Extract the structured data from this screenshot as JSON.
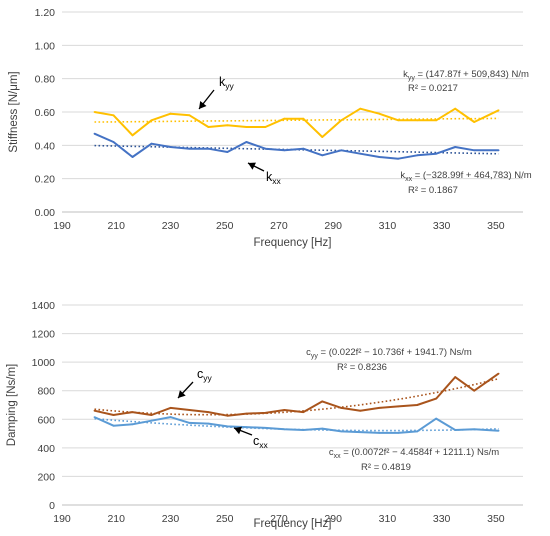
{
  "chart_data": [
    {
      "type": "line",
      "xlabel": "Frequency [Hz]",
      "ylabel": "Stiffness [N/μm]",
      "xlim": [
        190,
        360
      ],
      "ylim": [
        0.0,
        1.2
      ],
      "x_ticks": [
        "190",
        "210",
        "230",
        "250",
        "270",
        "290",
        "310",
        "330",
        "350"
      ],
      "y_ticks": [
        "0.00",
        "0.20",
        "0.40",
        "0.60",
        "0.80",
        "1.00",
        "1.20"
      ],
      "grid": "horizontal",
      "x": [
        202,
        209,
        216,
        223,
        230,
        237,
        244,
        251,
        258,
        265,
        272,
        279,
        286,
        293,
        300,
        307,
        314,
        321,
        328,
        335,
        342,
        351
      ],
      "series": [
        {
          "id": "kyy",
          "color": "#FFC000",
          "values": [
            0.6,
            0.58,
            0.46,
            0.55,
            0.59,
            0.58,
            0.51,
            0.52,
            0.51,
            0.51,
            0.56,
            0.56,
            0.45,
            0.55,
            0.62,
            0.59,
            0.55,
            0.55,
            0.55,
            0.62,
            0.54,
            0.61
          ],
          "trend": {
            "slope": 0.00014787,
            "intercept": 0.509843,
            "color": "#FFC000"
          },
          "label_main": "k",
          "label_sub": "yy",
          "equation_main": "k",
          "equation_sub": "yy",
          "equation_rest": " = (147.87f + 509,843) N/m",
          "r2": "R² = 0.0217"
        },
        {
          "id": "kxx",
          "color": "#4472C4",
          "values": [
            0.47,
            0.42,
            0.33,
            0.41,
            0.39,
            0.38,
            0.38,
            0.36,
            0.42,
            0.38,
            0.37,
            0.38,
            0.34,
            0.37,
            0.35,
            0.33,
            0.32,
            0.34,
            0.35,
            0.39,
            0.37,
            0.37
          ],
          "trend": {
            "slope": -0.00032899,
            "intercept": 0.464783,
            "color": "#2F5597"
          },
          "label_main": "k",
          "label_sub": "xx",
          "equation_main": "k",
          "equation_sub": "xx",
          "equation_rest": " = (−328.99f + 464,783) N/m",
          "r2": "R² = 0.1867"
        }
      ]
    },
    {
      "type": "line",
      "xlabel": "Frequency [Hz]",
      "ylabel": "Damping [Ns/m]",
      "xlim": [
        190,
        360
      ],
      "ylim": [
        0,
        1400
      ],
      "x_ticks": [
        "190",
        "210",
        "230",
        "250",
        "270",
        "290",
        "310",
        "330",
        "350"
      ],
      "y_ticks": [
        "0",
        "200",
        "400",
        "600",
        "800",
        "1000",
        "1200",
        "1400"
      ],
      "grid": "horizontal",
      "x": [
        202,
        209,
        216,
        223,
        230,
        237,
        244,
        251,
        258,
        265,
        272,
        279,
        286,
        293,
        300,
        307,
        314,
        321,
        328,
        335,
        342,
        351
      ],
      "series": [
        {
          "id": "cyy",
          "color": "#A9541C",
          "values": [
            660,
            630,
            650,
            630,
            680,
            665,
            650,
            625,
            640,
            645,
            665,
            650,
            725,
            680,
            660,
            680,
            690,
            700,
            745,
            895,
            800,
            920
          ],
          "trend": {
            "a": 0.022,
            "b": -10.736,
            "c": 1941.7,
            "color": "#A9541C"
          },
          "label_main": "c",
          "label_sub": "yy",
          "equation_main": "c",
          "equation_sub": "yy",
          "equation_rest": " = (0.022f² − 10.736f + 1941.7) Ns/m",
          "r2": "R² = 0.8236"
        },
        {
          "id": "cxx",
          "color": "#5B9BD5",
          "values": [
            615,
            555,
            565,
            590,
            615,
            575,
            570,
            550,
            545,
            540,
            530,
            525,
            535,
            515,
            510,
            505,
            505,
            515,
            605,
            525,
            530,
            520
          ],
          "trend": {
            "a": 0.0072,
            "b": -4.4584,
            "c": 1211.1,
            "color": "#5B9BD5"
          },
          "label_main": "c",
          "label_sub": "xx",
          "equation_main": "c",
          "equation_sub": "xx",
          "equation_rest": " = (0.0072f² − 4.4584f + 1211.1) Ns/m",
          "r2": "R² = 0.4819"
        }
      ]
    }
  ]
}
